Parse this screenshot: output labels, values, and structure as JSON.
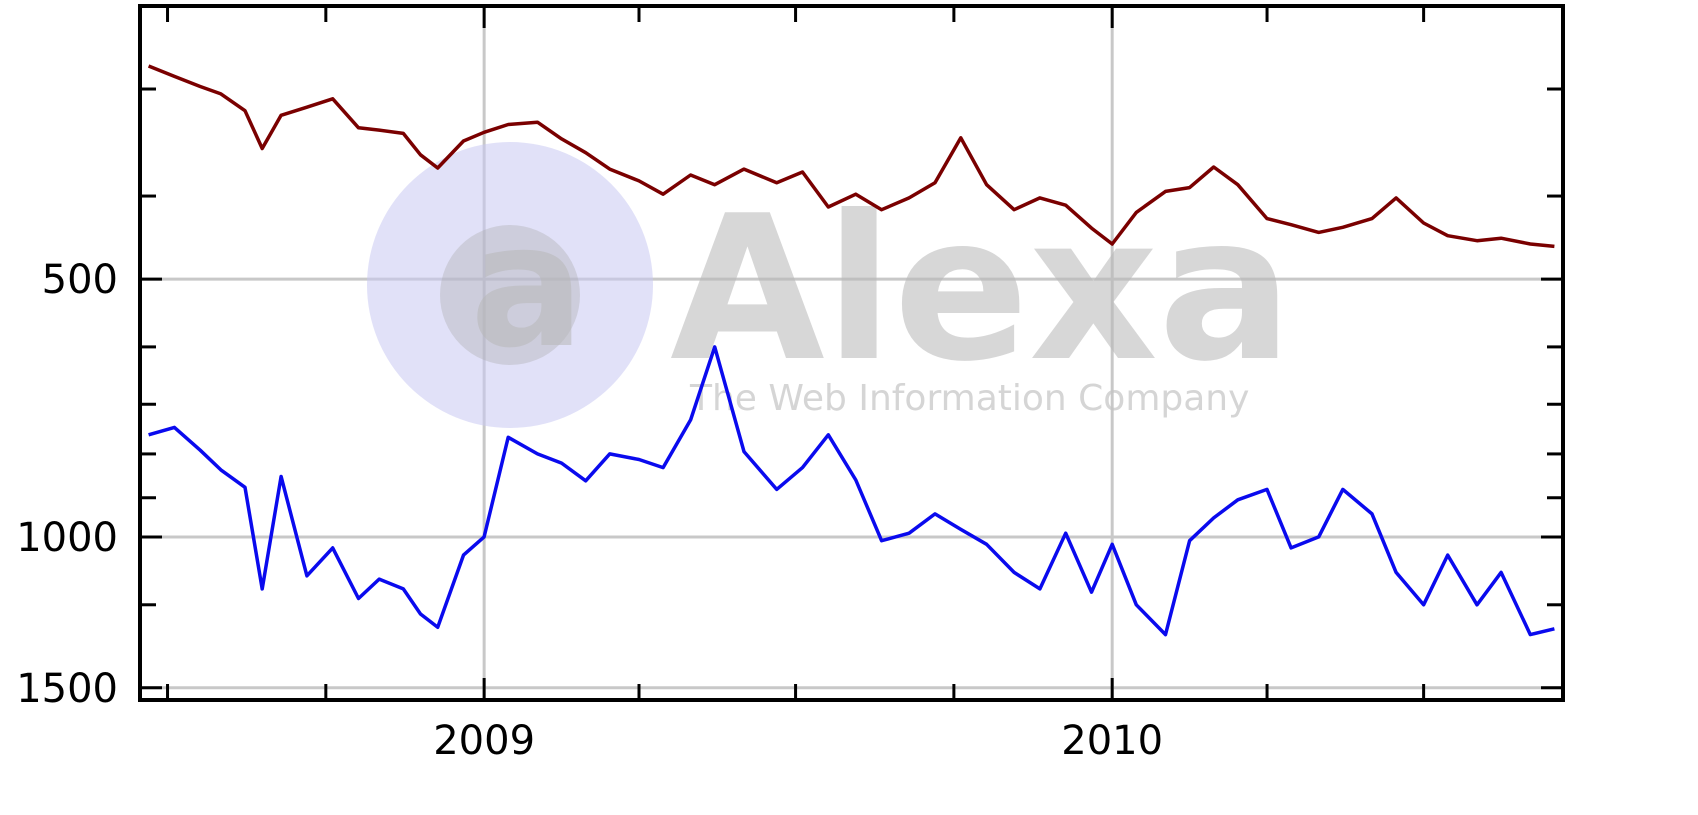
{
  "chart_data": {
    "type": "line",
    "title": "",
    "xlabel": "",
    "ylabel": "",
    "x_axis": {
      "range": [
        "2008-06-15",
        "2010-09-20"
      ],
      "tick_labels": [
        "2009",
        "2010"
      ]
    },
    "y_axis": {
      "scale": "log",
      "inverted": true,
      "range": [
        240,
        1550
      ],
      "tick_labels": [
        "500",
        "1000",
        "1500"
      ]
    },
    "grid": true,
    "legend": "none",
    "watermark": {
      "brand": "Alexa",
      "logo_text": "a",
      "tagline": "The Web Information Company"
    },
    "colors": {
      "series_1": "#7a0000",
      "series_2": "#0a0aee",
      "grid": "#c8c8c8",
      "frame": "#000000"
    },
    "series": [
      {
        "name": "",
        "x": [
          "2008-06-20",
          "2008-07-05",
          "2008-07-20",
          "2008-08-01",
          "2008-08-15",
          "2008-08-25",
          "2008-09-05",
          "2008-09-20",
          "2008-10-05",
          "2008-10-20",
          "2008-11-01",
          "2008-11-15",
          "2008-11-25",
          "2008-12-05",
          "2008-12-20",
          "2009-01-01",
          "2009-01-15",
          "2009-02-01",
          "2009-02-15",
          "2009-03-01",
          "2009-03-15",
          "2009-04-01",
          "2009-04-15",
          "2009-05-01",
          "2009-05-15",
          "2009-06-01",
          "2009-06-20",
          "2009-07-05",
          "2009-07-20",
          "2009-08-05",
          "2009-08-20",
          "2009-09-05",
          "2009-09-20",
          "2009-10-05",
          "2009-10-20",
          "2009-11-05",
          "2009-11-20",
          "2009-12-05",
          "2009-12-20",
          "2010-01-01",
          "2010-01-15",
          "2010-02-01",
          "2010-02-15",
          "2010-03-01",
          "2010-03-15",
          "2010-04-01",
          "2010-04-15",
          "2010-05-01",
          "2010-05-15",
          "2010-06-01",
          "2010-06-15",
          "2010-07-01",
          "2010-07-15",
          "2010-08-01",
          "2010-08-15",
          "2010-09-01",
          "2010-09-15"
        ],
        "values": [
          282,
          290,
          298,
          304,
          318,
          352,
          322,
          315,
          308,
          333,
          335,
          338,
          358,
          371,
          345,
          337,
          330,
          328,
          343,
          356,
          372,
          384,
          398,
          378,
          388,
          372,
          386,
          375,
          412,
          398,
          415,
          402,
          386,
          342,
          388,
          415,
          402,
          410,
          436,
          455,
          418,
          395,
          391,
          370,
          388,
          425,
          432,
          441,
          435,
          425,
          402,
          430,
          445,
          451,
          448,
          455,
          458
        ]
      },
      {
        "name": "",
        "x": [
          "2008-06-20",
          "2008-07-05",
          "2008-07-20",
          "2008-08-01",
          "2008-08-15",
          "2008-08-25",
          "2008-09-05",
          "2008-09-20",
          "2008-10-05",
          "2008-10-20",
          "2008-11-01",
          "2008-11-15",
          "2008-11-25",
          "2008-12-05",
          "2008-12-20",
          "2009-01-01",
          "2009-01-15",
          "2009-02-01",
          "2009-02-15",
          "2009-03-01",
          "2009-03-15",
          "2009-04-01",
          "2009-04-15",
          "2009-05-01",
          "2009-05-15",
          "2009-06-01",
          "2009-06-20",
          "2009-07-05",
          "2009-07-20",
          "2009-08-05",
          "2009-08-20",
          "2009-09-05",
          "2009-09-20",
          "2009-10-05",
          "2009-10-20",
          "2009-11-05",
          "2009-11-20",
          "2009-12-05",
          "2009-12-20",
          "2010-01-01",
          "2010-01-15",
          "2010-02-01",
          "2010-02-15",
          "2010-03-01",
          "2010-03-15",
          "2010-04-01",
          "2010-04-15",
          "2010-05-01",
          "2010-05-15",
          "2010-06-01",
          "2010-06-15",
          "2010-07-01",
          "2010-07-15",
          "2010-08-01",
          "2010-08-15",
          "2010-09-01",
          "2010-09-15"
        ],
        "values": [
          760,
          745,
          792,
          835,
          875,
          1150,
          850,
          1110,
          1030,
          1180,
          1120,
          1150,
          1230,
          1275,
          1050,
          1000,
          765,
          800,
          820,
          860,
          800,
          812,
          830,
          730,
          600,
          795,
          880,
          830,
          760,
          858,
          1010,
          990,
          940,
          980,
          1020,
          1100,
          1150,
          990,
          1160,
          1020,
          1200,
          1300,
          1010,
          950,
          905,
          880,
          1030,
          1000,
          880,
          940,
          1100,
          1200,
          1050,
          1200,
          1100,
          1300,
          1280
        ]
      }
    ]
  }
}
